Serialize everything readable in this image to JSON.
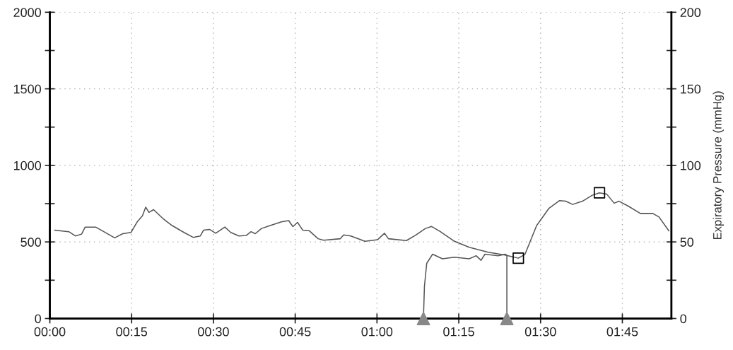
{
  "chart_data": {
    "type": "line",
    "y2label": "Expiratory Pressure (mmHg)",
    "xlim": [
      0,
      1.9
    ],
    "xticks": [
      {
        "value": 0,
        "label": "00:00"
      },
      {
        "value": 0.25,
        "label": "00:15"
      },
      {
        "value": 0.5,
        "label": "00:30"
      },
      {
        "value": 0.75,
        "label": "00:45"
      },
      {
        "value": 1,
        "label": "01:00"
      },
      {
        "value": 1.25,
        "label": "01:15"
      },
      {
        "value": 1.5,
        "label": "01:30"
      },
      {
        "value": 1.75,
        "label": "01:45"
      }
    ],
    "ylim": [
      0,
      2000
    ],
    "yticks": [
      0,
      {
        "value": 250,
        "label": null
      },
      500,
      {
        "value": 750,
        "label": null
      },
      1000,
      {
        "value": 1250,
        "label": null
      },
      1500,
      {
        "value": 1750,
        "label": null
      },
      2000
    ],
    "y2lim": [
      0,
      200
    ],
    "y2ticks": [
      0,
      {
        "value": 25,
        "label": null
      },
      50,
      {
        "value": 75,
        "label": null
      },
      100,
      {
        "value": 125,
        "label": null
      },
      150,
      {
        "value": 175,
        "label": null
      },
      200
    ],
    "grid": true,
    "legend": false,
    "line_style": "solid",
    "series": [
      {
        "color": "#555555",
        "x": [
          0.015,
          0.058,
          0.078,
          0.097,
          0.108,
          0.14,
          0.165,
          0.198,
          0.223,
          0.248,
          0.267,
          0.283,
          0.293,
          0.303,
          0.317,
          0.345,
          0.373,
          0.41,
          0.438,
          0.46,
          0.47,
          0.488,
          0.507,
          0.535,
          0.553,
          0.578,
          0.6,
          0.615,
          0.628,
          0.647,
          0.675,
          0.708,
          0.73,
          0.743,
          0.757,
          0.773,
          0.793,
          0.82,
          0.837,
          0.888,
          0.898,
          0.92,
          0.963,
          1.002,
          1.023,
          1.035,
          1.09,
          1.118,
          1.148,
          1.167,
          1.193,
          1.237,
          1.282,
          1.34,
          1.392,
          1.432,
          1.452,
          1.488,
          1.525,
          1.558,
          1.577,
          1.598,
          1.628,
          1.658,
          1.68,
          1.702,
          1.725,
          1.74,
          1.768,
          1.805,
          1.843,
          1.862,
          1.892
        ],
        "values": [
          577,
          567,
          539,
          551,
          597,
          597,
          567,
          527,
          554,
          562,
          631,
          670,
          727,
          693,
          711,
          654,
          608,
          562,
          530,
          539,
          577,
          582,
          557,
          597,
          562,
          539,
          542,
          567,
          554,
          588,
          608,
          631,
          639,
          600,
          628,
          577,
          573,
          521,
          511,
          521,
          546,
          539,
          504,
          515,
          557,
          521,
          509,
          544,
          588,
          601,
          568,
          504,
          465,
          433,
          414,
          394,
          418,
          607,
          718,
          770,
          766,
          745,
          766,
          805,
          821,
          813,
          753,
          766,
          734,
          686,
          686,
          663,
          573
        ]
      },
      {
        "axis": "y2",
        "color": "#555555",
        "x": [
          1.142,
          1.145,
          1.152,
          1.17,
          1.2,
          1.237,
          1.282,
          1.303,
          1.318,
          1.33,
          1.37,
          1.393,
          1.397,
          1.397
        ],
        "values": [
          0,
          21,
          36,
          42,
          39,
          40,
          39,
          41,
          38,
          42,
          41,
          42,
          41,
          0
        ]
      },
      {
        "type": "scatter",
        "axis": "y2",
        "marker": "triangle",
        "color": "#888888",
        "x": [
          1.142,
          1.397
        ],
        "values": [
          0,
          0
        ]
      },
      {
        "type": "scatter",
        "marker": "square",
        "color": "#000000",
        "x": [
          1.432,
          1.68
        ],
        "values": [
          394,
          821
        ]
      }
    ]
  }
}
